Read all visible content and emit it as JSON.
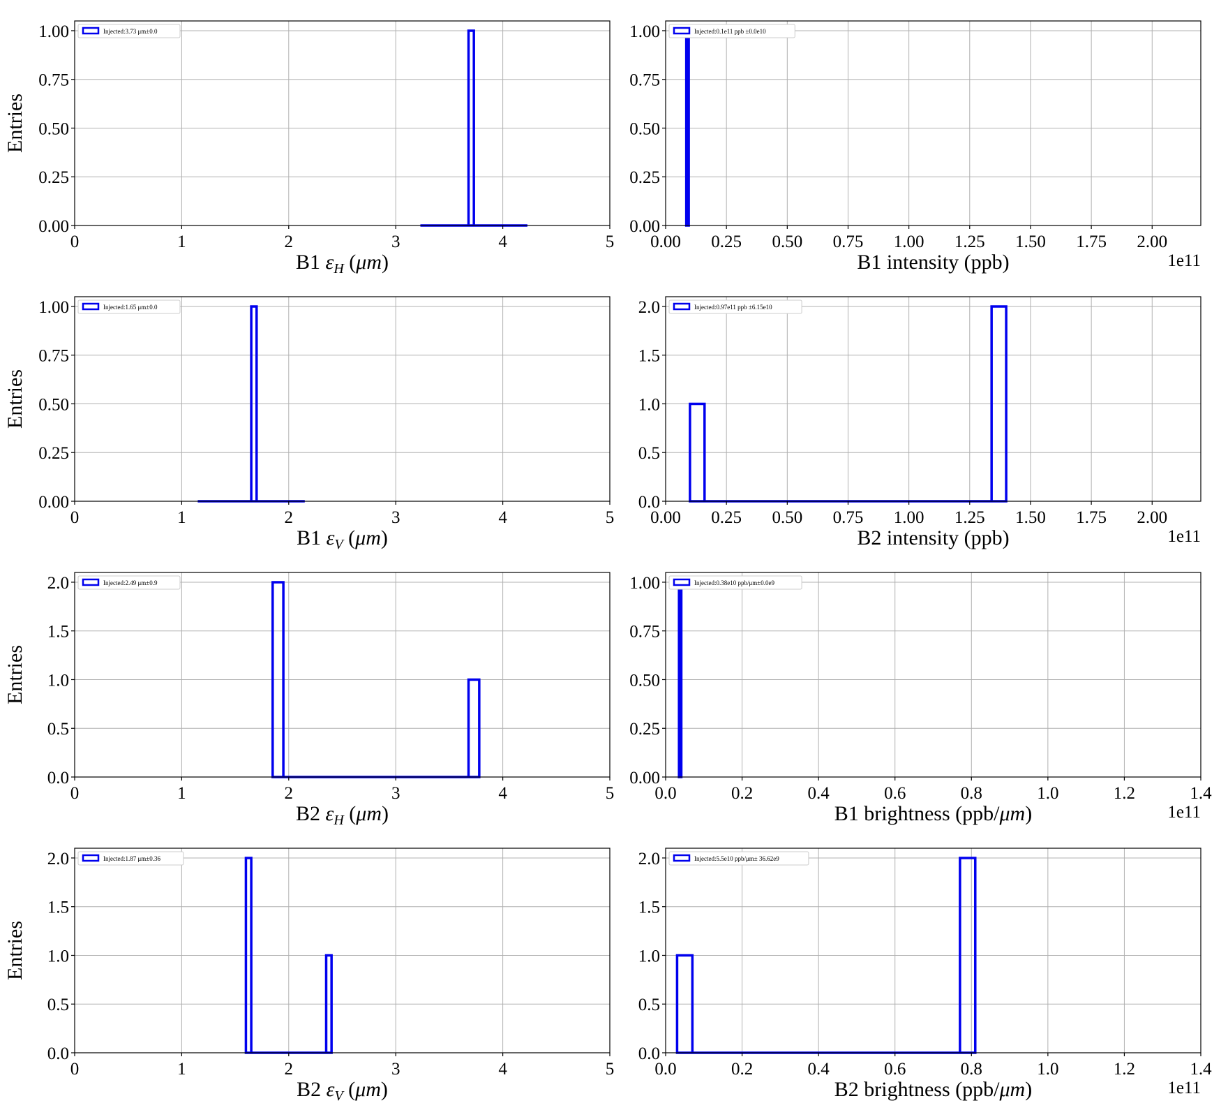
{
  "colors": {
    "series": "#0000ee",
    "grid": "#b0b0b0",
    "axis": "#000000"
  },
  "chart_data": [
    {
      "id": "b1-eh",
      "type": "histogram",
      "xlabel": "B1 εH (μm)",
      "xlabel_parts": {
        "pre": "B1 ",
        "var": "ε",
        "sub": "H",
        "post": " (",
        "unit": "μm",
        "close": ")"
      },
      "ylabel": "Entries",
      "xlim": [
        0,
        5
      ],
      "ylim": [
        0,
        1.05
      ],
      "xticks": [
        0,
        1,
        2,
        3,
        4,
        5
      ],
      "xtick_labels": [
        "0",
        "1",
        "2",
        "3",
        "4",
        "5"
      ],
      "yticks": [
        0,
        0.25,
        0.5,
        0.75,
        1.0
      ],
      "ytick_labels": [
        "0.00",
        "0.25",
        "0.50",
        "0.75",
        "1.00"
      ],
      "offset_text": "",
      "legend": "Injected:3.73 μm±0.0",
      "grid": true,
      "legend_position": "upper-left",
      "bins": [
        {
          "x0": 3.23,
          "x1": 3.68,
          "count": 0
        },
        {
          "x0": 3.68,
          "x1": 3.73,
          "count": 1
        },
        {
          "x0": 3.73,
          "x1": 4.23,
          "count": 0
        }
      ]
    },
    {
      "id": "b1-intensity",
      "type": "histogram",
      "xlabel": "B1 intensity (ppb)",
      "ylabel": "",
      "xlim": [
        0,
        220000000000.0
      ],
      "ylim": [
        0,
        1.05
      ],
      "xticks": [
        0,
        25000000000.0,
        50000000000.0,
        75000000000.0,
        100000000000.0,
        125000000000.0,
        150000000000.0,
        175000000000.0,
        200000000000.0
      ],
      "xtick_labels": [
        "0.00",
        "0.25",
        "0.50",
        "0.75",
        "1.00",
        "1.25",
        "1.50",
        "1.75",
        "2.00"
      ],
      "yticks": [
        0,
        0.25,
        0.5,
        0.75,
        1.0
      ],
      "ytick_labels": [
        "0.00",
        "0.25",
        "0.50",
        "0.75",
        "1.00"
      ],
      "offset_text": "1e11",
      "legend": "Injected:0.1e11 ppb ±0.0e10",
      "grid": true,
      "legend_position": "upper-left",
      "bins": [
        {
          "x0": 8500000000.0,
          "x1": 9500000000.0,
          "count": 1
        }
      ]
    },
    {
      "id": "b1-ev",
      "type": "histogram",
      "xlabel": "B1 εV (μm)",
      "xlabel_parts": {
        "pre": "B1 ",
        "var": "ε",
        "sub": "V",
        "post": " (",
        "unit": "μm",
        "close": ")"
      },
      "ylabel": "Entries",
      "xlim": [
        0,
        5
      ],
      "ylim": [
        0,
        1.05
      ],
      "xticks": [
        0,
        1,
        2,
        3,
        4,
        5
      ],
      "xtick_labels": [
        "0",
        "1",
        "2",
        "3",
        "4",
        "5"
      ],
      "yticks": [
        0,
        0.25,
        0.5,
        0.75,
        1.0
      ],
      "ytick_labels": [
        "0.00",
        "0.25",
        "0.50",
        "0.75",
        "1.00"
      ],
      "offset_text": "",
      "legend": "Injected:1.65 μm±0.0",
      "grid": true,
      "legend_position": "upper-left",
      "bins": [
        {
          "x0": 1.15,
          "x1": 1.65,
          "count": 0
        },
        {
          "x0": 1.65,
          "x1": 1.7,
          "count": 1
        },
        {
          "x0": 1.7,
          "x1": 2.15,
          "count": 0
        }
      ]
    },
    {
      "id": "b2-intensity",
      "type": "histogram",
      "xlabel": "B2 intensity (ppb)",
      "ylabel": "",
      "xlim": [
        0,
        220000000000.0
      ],
      "ylim": [
        0,
        2.1
      ],
      "xticks": [
        0,
        25000000000.0,
        50000000000.0,
        75000000000.0,
        100000000000.0,
        125000000000.0,
        150000000000.0,
        175000000000.0,
        200000000000.0
      ],
      "xtick_labels": [
        "0.00",
        "0.25",
        "0.50",
        "0.75",
        "1.00",
        "1.25",
        "1.50",
        "1.75",
        "2.00"
      ],
      "yticks": [
        0,
        0.5,
        1.0,
        1.5,
        2.0
      ],
      "ytick_labels": [
        "0.0",
        "0.5",
        "1.0",
        "1.5",
        "2.0"
      ],
      "offset_text": "1e11",
      "legend": "Injected:0.97e11 ppb ±6.15e10",
      "grid": true,
      "legend_position": "upper-left",
      "bins": [
        {
          "x0": 10000000000.0,
          "x1": 16000000000.0,
          "count": 1
        },
        {
          "x0": 16000000000.0,
          "x1": 134000000000.0,
          "count": 0
        },
        {
          "x0": 134000000000.0,
          "x1": 140000000000.0,
          "count": 2
        }
      ]
    },
    {
      "id": "b2-eh",
      "type": "histogram",
      "xlabel": "B2 εH (μm)",
      "xlabel_parts": {
        "pre": "B2 ",
        "var": "ε",
        "sub": "H",
        "post": " (",
        "unit": "μm",
        "close": ")"
      },
      "ylabel": "Entries",
      "xlim": [
        0,
        5
      ],
      "ylim": [
        0,
        2.1
      ],
      "xticks": [
        0,
        1,
        2,
        3,
        4,
        5
      ],
      "xtick_labels": [
        "0",
        "1",
        "2",
        "3",
        "4",
        "5"
      ],
      "yticks": [
        0,
        0.5,
        1.0,
        1.5,
        2.0
      ],
      "ytick_labels": [
        "0.0",
        "0.5",
        "1.0",
        "1.5",
        "2.0"
      ],
      "offset_text": "",
      "legend": "Injected:2.49 μm±0.9",
      "grid": true,
      "legend_position": "upper-left",
      "bins": [
        {
          "x0": 1.85,
          "x1": 1.95,
          "count": 2
        },
        {
          "x0": 1.95,
          "x1": 3.68,
          "count": 0
        },
        {
          "x0": 3.68,
          "x1": 3.78,
          "count": 1
        }
      ]
    },
    {
      "id": "b1-brightness",
      "type": "histogram",
      "xlabel": "B1 brightness (ppb/μm)",
      "xlabel_parts": {
        "pre": "B1 brightness (ppb/",
        "unit": "μm",
        "close": ")"
      },
      "ylabel": "",
      "xlim": [
        0,
        140000000000.0
      ],
      "ylim": [
        0,
        1.05
      ],
      "xticks": [
        0,
        20000000000.0,
        40000000000.0,
        60000000000.0,
        80000000000.0,
        100000000000.0,
        120000000000.0,
        140000000000.0
      ],
      "xtick_labels": [
        "0.0",
        "0.2",
        "0.4",
        "0.6",
        "0.8",
        "1.0",
        "1.2",
        "1.4"
      ],
      "yticks": [
        0,
        0.25,
        0.5,
        0.75,
        1.0
      ],
      "ytick_labels": [
        "0.00",
        "0.25",
        "0.50",
        "0.75",
        "1.00"
      ],
      "offset_text": "1e11",
      "legend": "Injected:0.38e10 ppb/μm±0.0e9",
      "grid": true,
      "legend_position": "upper-left",
      "bins": [
        {
          "x0": 3500000000.0,
          "x1": 4100000000.0,
          "count": 1
        }
      ]
    },
    {
      "id": "b2-ev",
      "type": "histogram",
      "xlabel": "B2 εV (μm)",
      "xlabel_parts": {
        "pre": "B2 ",
        "var": "ε",
        "sub": "V",
        "post": " (",
        "unit": "μm",
        "close": ")"
      },
      "ylabel": "Entries",
      "xlim": [
        0,
        5
      ],
      "ylim": [
        0,
        2.1
      ],
      "xticks": [
        0,
        1,
        2,
        3,
        4,
        5
      ],
      "xtick_labels": [
        "0",
        "1",
        "2",
        "3",
        "4",
        "5"
      ],
      "yticks": [
        0,
        0.5,
        1.0,
        1.5,
        2.0
      ],
      "ytick_labels": [
        "0.0",
        "0.5",
        "1.0",
        "1.5",
        "2.0"
      ],
      "offset_text": "",
      "legend": "Injected:1.87 μm±0.36",
      "grid": true,
      "legend_position": "upper-left",
      "bins": [
        {
          "x0": 1.6,
          "x1": 1.65,
          "count": 2
        },
        {
          "x0": 1.65,
          "x1": 2.35,
          "count": 0
        },
        {
          "x0": 2.35,
          "x1": 2.4,
          "count": 1
        }
      ]
    },
    {
      "id": "b2-brightness",
      "type": "histogram",
      "xlabel": "B2 brightness (ppb/μm)",
      "xlabel_parts": {
        "pre": "B2 brightness (ppb/",
        "unit": "μm",
        "close": ")"
      },
      "ylabel": "",
      "xlim": [
        0,
        140000000000.0
      ],
      "ylim": [
        0,
        2.1
      ],
      "xticks": [
        0,
        20000000000.0,
        40000000000.0,
        60000000000.0,
        80000000000.0,
        100000000000.0,
        120000000000.0,
        140000000000.0
      ],
      "xtick_labels": [
        "0.0",
        "0.2",
        "0.4",
        "0.6",
        "0.8",
        "1.0",
        "1.2",
        "1.4"
      ],
      "yticks": [
        0,
        0.5,
        1.0,
        1.5,
        2.0
      ],
      "ytick_labels": [
        "0.0",
        "0.5",
        "1.0",
        "1.5",
        "2.0"
      ],
      "offset_text": "1e11",
      "legend": "Injected:5.5e10 ppb/μm± 36.62e9",
      "grid": true,
      "legend_position": "upper-left",
      "bins": [
        {
          "x0": 3000000000.0,
          "x1": 7000000000.0,
          "count": 1
        },
        {
          "x0": 7000000000.0,
          "x1": 77000000000.0,
          "count": 0
        },
        {
          "x0": 77000000000.0,
          "x1": 81000000000.0,
          "count": 2
        }
      ]
    }
  ]
}
